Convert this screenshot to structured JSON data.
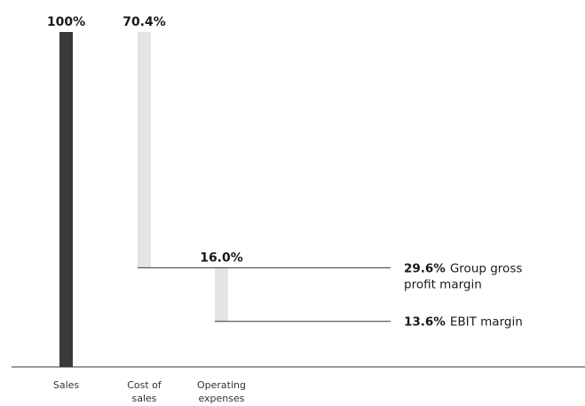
{
  "chart_data": {
    "type": "bar",
    "title": "",
    "xlabel": "",
    "ylabel": "",
    "ylim": [
      0,
      100
    ],
    "bar_style": "waterfall",
    "categories": [
      [
        "Sales"
      ],
      [
        "Cost of",
        "sales"
      ],
      [
        "Operating",
        "expenses"
      ]
    ],
    "values": [
      100,
      70.4,
      16.0
    ],
    "value_labels": [
      "100%",
      "70.4%",
      "16.0%"
    ],
    "bar_colors": [
      "#3a3a3a",
      "#e4e4e4",
      "#e4e4e4"
    ],
    "annotations": [
      {
        "level": 29.6,
        "value_label": "29.6%",
        "lines": [
          "Group gross",
          "profit margin"
        ]
      },
      {
        "level": 13.6,
        "value_label": "13.6%",
        "lines": [
          "EBIT margin"
        ]
      }
    ]
  }
}
